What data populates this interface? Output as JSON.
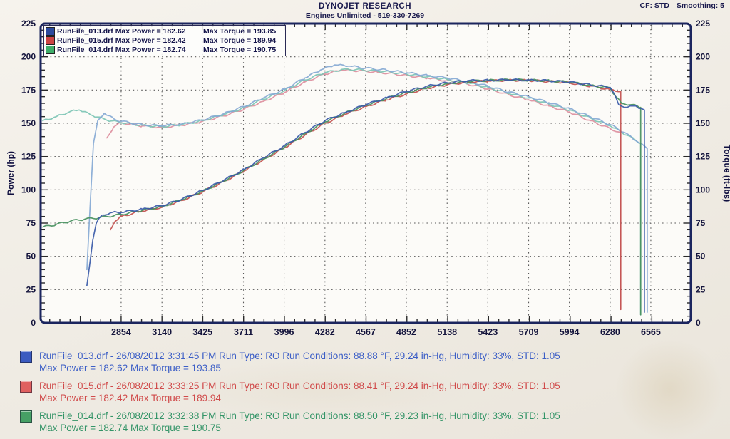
{
  "header": {
    "title": "DYNOJET RESEARCH",
    "subtitle": "Engines Unlimited - 519-330-7269",
    "cf_label": "CF: STD",
    "smoothing_label": "Smoothing: 5"
  },
  "legend": {
    "rows": [
      {
        "color": "#2c4a9e",
        "col1": "RunFile_013.drf Max Power = 182.62",
        "col2": "Max Torque = 193.85"
      },
      {
        "color": "#cc4444",
        "col1": "RunFile_015.drf Max Power = 182.42",
        "col2": "Max Torque = 189.94"
      },
      {
        "color": "#3fae6a",
        "col1": "RunFile_014.drf Max Power = 182.74",
        "col2": "Max Torque = 190.75"
      }
    ]
  },
  "chart_data": {
    "type": "line",
    "title": "DYNOJET RESEARCH",
    "ylabel_left": "Power (hp)",
    "ylabel_right": "Torque (ft-lbs)",
    "grid": true,
    "legend_position": "top-left",
    "xlim": [
      2290,
      6845
    ],
    "ylim": [
      0,
      225
    ],
    "x_ticks": [
      2854,
      3140,
      3425,
      3711,
      3996,
      4282,
      4567,
      4852,
      5138,
      5423,
      5709,
      5994,
      6280,
      6565
    ],
    "y_ticks": [
      0,
      25,
      50,
      75,
      100,
      125,
      150,
      175,
      200,
      225
    ],
    "series": [
      {
        "id": "torque-015",
        "name": "RunFile_015.drf Torque (ft-lbs)",
        "color": "#dd8f9e",
        "max": 189.94,
        "points": [
          [
            2754,
            139
          ],
          [
            2800,
            147
          ],
          [
            2854,
            150.5
          ],
          [
            3000,
            148
          ],
          [
            3140,
            147
          ],
          [
            3280,
            148.5
          ],
          [
            3425,
            151.5
          ],
          [
            3570,
            155.5
          ],
          [
            3711,
            160.5
          ],
          [
            3850,
            166.5
          ],
          [
            3996,
            173
          ],
          [
            4140,
            181
          ],
          [
            4280,
            187
          ],
          [
            4400,
            189.94
          ],
          [
            4520,
            189.5
          ],
          [
            4650,
            188.5
          ],
          [
            4852,
            186
          ],
          [
            5000,
            184
          ],
          [
            5138,
            182
          ],
          [
            5280,
            179.5
          ],
          [
            5423,
            176
          ],
          [
            5570,
            171.5
          ],
          [
            5709,
            167.5
          ],
          [
            5850,
            163
          ],
          [
            5994,
            158.5
          ],
          [
            6140,
            152
          ],
          [
            6280,
            146
          ],
          [
            6340,
            143.5
          ],
          [
            6354,
            143
          ],
          [
            6354,
            10
          ]
        ]
      },
      {
        "id": "torque-014",
        "name": "RunFile_014.drf Torque (ft-lbs)",
        "color": "#7cc4b4",
        "max": 190.75,
        "points": [
          [
            2305,
            152
          ],
          [
            2400,
            155
          ],
          [
            2500,
            159
          ],
          [
            2560,
            160
          ],
          [
            2650,
            156
          ],
          [
            2750,
            152.5
          ],
          [
            2854,
            150.5
          ],
          [
            3000,
            148.5
          ],
          [
            3140,
            147.5
          ],
          [
            3280,
            149
          ],
          [
            3425,
            152
          ],
          [
            3570,
            156.5
          ],
          [
            3711,
            161.5
          ],
          [
            3850,
            168
          ],
          [
            3996,
            174.5
          ],
          [
            4140,
            182.5
          ],
          [
            4280,
            188
          ],
          [
            4420,
            190.75
          ],
          [
            4550,
            190
          ],
          [
            4700,
            189
          ],
          [
            4852,
            187
          ],
          [
            5000,
            185
          ],
          [
            5138,
            183
          ],
          [
            5280,
            180.5
          ],
          [
            5423,
            177
          ],
          [
            5570,
            172.5
          ],
          [
            5709,
            169
          ],
          [
            5850,
            164.5
          ],
          [
            5994,
            160
          ],
          [
            6140,
            154
          ],
          [
            6280,
            148
          ],
          [
            6400,
            141
          ],
          [
            6494,
            135
          ],
          [
            6494,
            6
          ]
        ]
      },
      {
        "id": "torque-013",
        "name": "RunFile_013.drf Torque (ft-lbs)",
        "color": "#85a9d4",
        "max": 193.85,
        "points": [
          [
            2614,
            40
          ],
          [
            2640,
            95
          ],
          [
            2660,
            135
          ],
          [
            2690,
            152
          ],
          [
            2735,
            157.5
          ],
          [
            2800,
            153.5
          ],
          [
            2854,
            151.5
          ],
          [
            3000,
            149
          ],
          [
            3140,
            148
          ],
          [
            3280,
            149.5
          ],
          [
            3425,
            152.5
          ],
          [
            3570,
            157
          ],
          [
            3711,
            162.5
          ],
          [
            3850,
            169
          ],
          [
            3996,
            175.5
          ],
          [
            4140,
            184
          ],
          [
            4250,
            190
          ],
          [
            4350,
            193.85
          ],
          [
            4450,
            193
          ],
          [
            4567,
            191.5
          ],
          [
            4710,
            190
          ],
          [
            4852,
            188
          ],
          [
            5000,
            186
          ],
          [
            5138,
            184
          ],
          [
            5280,
            181.5
          ],
          [
            5423,
            178
          ],
          [
            5570,
            173.5
          ],
          [
            5709,
            170
          ],
          [
            5850,
            165.5
          ],
          [
            5994,
            161
          ],
          [
            6140,
            155
          ],
          [
            6280,
            149
          ],
          [
            6400,
            142
          ],
          [
            6460,
            137
          ],
          [
            6540,
            131
          ],
          [
            6540,
            8
          ]
        ]
      },
      {
        "id": "power-015",
        "name": "RunFile_015.drf Power (hp)",
        "color": "#c2504e",
        "max": 182.42,
        "points": [
          [
            2780,
            70
          ],
          [
            2810,
            76
          ],
          [
            2854,
            80
          ],
          [
            3000,
            84
          ],
          [
            3140,
            87
          ],
          [
            3280,
            92
          ],
          [
            3425,
            98.5
          ],
          [
            3570,
            106
          ],
          [
            3711,
            114
          ],
          [
            3850,
            122.5
          ],
          [
            3996,
            131.5
          ],
          [
            4140,
            141
          ],
          [
            4282,
            150
          ],
          [
            4420,
            156.5
          ],
          [
            4567,
            162.5
          ],
          [
            4710,
            167.5
          ],
          [
            4852,
            172
          ],
          [
            5000,
            176.5
          ],
          [
            5138,
            179
          ],
          [
            5280,
            181
          ],
          [
            5423,
            181.8
          ],
          [
            5560,
            182.42
          ],
          [
            5709,
            182.2
          ],
          [
            5850,
            181.5
          ],
          [
            5994,
            180.5
          ],
          [
            6140,
            178
          ],
          [
            6280,
            175.5
          ],
          [
            6354,
            174
          ],
          [
            6354,
            10
          ]
        ]
      },
      {
        "id": "power-014",
        "name": "RunFile_014.drf Power (hp)",
        "color": "#47905e",
        "max": 182.74,
        "points": [
          [
            2305,
            72
          ],
          [
            2400,
            74
          ],
          [
            2500,
            76.5
          ],
          [
            2600,
            78
          ],
          [
            2700,
            79
          ],
          [
            2854,
            81.5
          ],
          [
            3000,
            84.5
          ],
          [
            3140,
            87.5
          ],
          [
            3280,
            92.5
          ],
          [
            3425,
            99
          ],
          [
            3570,
            106.5
          ],
          [
            3711,
            114.5
          ],
          [
            3850,
            123
          ],
          [
            3996,
            132
          ],
          [
            4140,
            142
          ],
          [
            4282,
            151
          ],
          [
            4420,
            157.5
          ],
          [
            4567,
            163.5
          ],
          [
            4710,
            168.5
          ],
          [
            4852,
            173
          ],
          [
            5000,
            177
          ],
          [
            5138,
            179.8
          ],
          [
            5280,
            181.5
          ],
          [
            5423,
            182.2
          ],
          [
            5600,
            182.74
          ],
          [
            5709,
            182.4
          ],
          [
            5850,
            182
          ],
          [
            5994,
            181
          ],
          [
            6140,
            178.5
          ],
          [
            6280,
            176.5
          ],
          [
            6320,
            170
          ],
          [
            6360,
            165
          ],
          [
            6430,
            164
          ],
          [
            6494,
            162
          ],
          [
            6494,
            6
          ]
        ]
      },
      {
        "id": "power-013",
        "name": "RunFile_013.drf Power (hp)",
        "color": "#3a5aa8",
        "max": 182.62,
        "points": [
          [
            2614,
            28
          ],
          [
            2635,
            45
          ],
          [
            2655,
            62
          ],
          [
            2680,
            75
          ],
          [
            2720,
            81
          ],
          [
            2790,
            83
          ],
          [
            2854,
            83
          ],
          [
            3000,
            85.5
          ],
          [
            3140,
            88
          ],
          [
            3280,
            93
          ],
          [
            3425,
            99.5
          ],
          [
            3570,
            107
          ],
          [
            3711,
            115
          ],
          [
            3850,
            124
          ],
          [
            3996,
            133
          ],
          [
            4140,
            143
          ],
          [
            4282,
            152
          ],
          [
            4420,
            158
          ],
          [
            4567,
            164
          ],
          [
            4710,
            169
          ],
          [
            4852,
            174
          ],
          [
            5000,
            178
          ],
          [
            5138,
            180.5
          ],
          [
            5280,
            182
          ],
          [
            5423,
            182.3
          ],
          [
            5560,
            182.62
          ],
          [
            5709,
            182.5
          ],
          [
            5850,
            182
          ],
          [
            5994,
            181
          ],
          [
            6140,
            179
          ],
          [
            6280,
            177
          ],
          [
            6310,
            172
          ],
          [
            6340,
            164
          ],
          [
            6400,
            162
          ],
          [
            6460,
            163
          ],
          [
            6520,
            160
          ],
          [
            6520,
            8
          ]
        ]
      }
    ]
  },
  "footer": {
    "runs": [
      {
        "color": "#3b5bc0",
        "text_color": "#3c5ec6",
        "line1": "RunFile_013.drf - 26/08/2012 3:31:45 PM  Run Type: RO  Run Conditions: 88.88 °F, 29.24 in-Hg,  Humidity:  33%, STD: 1.05",
        "line2": "Max Power = 182.62  Max Torque = 193.85"
      },
      {
        "color": "#e06060",
        "text_color": "#d04a4a",
        "line1": "RunFile_015.drf - 26/08/2012 3:33:25 PM  Run Type: RO  Run Conditions: 88.41 °F, 29.24 in-Hg,  Humidity:  33%, STD: 1.05",
        "line2": "Max Power = 182.42  Max Torque = 189.94"
      },
      {
        "color": "#46a065",
        "text_color": "#339467",
        "line1": "RunFile_014.drf - 26/08/2012 3:32:38 PM  Run Type: RO  Run Conditions: 88.50 °F, 29.23 in-Hg,  Humidity:  33%, STD: 1.05",
        "line2": "Max Power = 182.74  Max Torque = 190.75"
      }
    ]
  }
}
